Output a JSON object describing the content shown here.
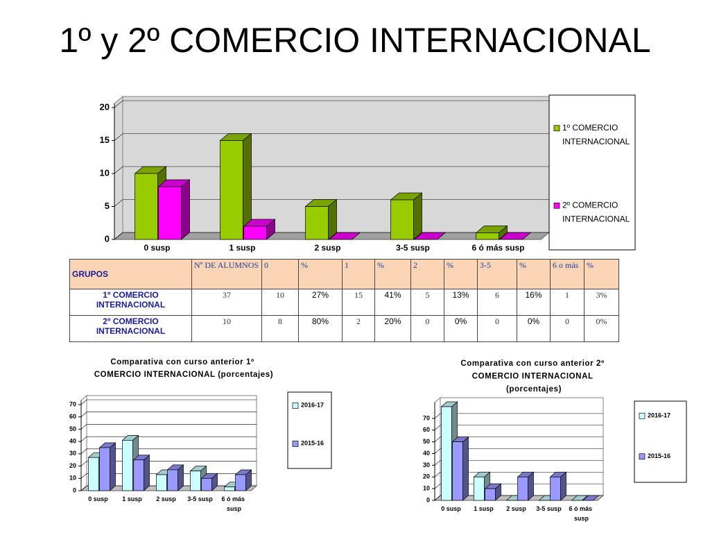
{
  "title": "1º y 2º COMERCIO INTERNACIONAL",
  "chart_data": [
    {
      "type": "bar",
      "categories": [
        "0 susp",
        "1 susp",
        "2 susp",
        "3-5 susp",
        "6 ó más susp"
      ],
      "series": [
        {
          "name": "1º COMERCIO INTERNACIONAL",
          "color": "#99cc00",
          "values": [
            10,
            15,
            5,
            6,
            1
          ]
        },
        {
          "name": "2º COMERCIO INTERNACIONAL",
          "color": "#ff00ff",
          "values": [
            8,
            2,
            0,
            0,
            0
          ]
        }
      ],
      "ylim": [
        0,
        20
      ],
      "yticks": [
        0,
        5,
        10,
        15,
        20
      ],
      "grid": true,
      "legend": "right"
    },
    {
      "type": "bar",
      "title": "Comparativa con curso anterior 1º COMERCIO INTERNACIONAL (porcentajes)",
      "categories": [
        "0 susp",
        "1 susp",
        "2 susp",
        "3-5 susp",
        "6 ó más susp"
      ],
      "series": [
        {
          "name": "2016-17",
          "color": "#ccffff",
          "values": [
            27,
            41,
            13,
            16,
            3
          ]
        },
        {
          "name": "2015-16",
          "color": "#9999ff",
          "values": [
            35,
            25,
            17,
            10,
            13
          ]
        }
      ],
      "ylim": [
        0,
        70
      ],
      "yticks": [
        0,
        10,
        20,
        30,
        40,
        50,
        60,
        70
      ],
      "grid": true,
      "legend": "right"
    },
    {
      "type": "bar",
      "title": "Comparativa con curso anterior 2º COMERCIO INTERNACIONAL (porcentajes)",
      "categories": [
        "0 susp",
        "1 susp",
        "2 susp",
        "3-5 susp",
        "6 ó más susp"
      ],
      "series": [
        {
          "name": "2016-17",
          "color": "#ccffff",
          "values": [
            80,
            20,
            0,
            0,
            0
          ]
        },
        {
          "name": "2015-16",
          "color": "#9999ff",
          "values": [
            50,
            10,
            20,
            20,
            0
          ]
        }
      ],
      "ylim": [
        0,
        80
      ],
      "yticks": [
        0,
        10,
        20,
        30,
        40,
        50,
        60,
        70
      ],
      "grid": true,
      "legend": "right"
    }
  ],
  "table": {
    "header": [
      "GRUPOS",
      "Nº DE ALUMNOS",
      "0",
      "%",
      "1",
      "%",
      "2",
      "%",
      "3-5",
      "%",
      "6 o más",
      "%"
    ],
    "rows": [
      [
        "1º COMERCIO INTERNACIONAL",
        "37",
        "10",
        "27%",
        "15",
        "41%",
        "5",
        "13%",
        "6",
        "16%",
        "1",
        "3%"
      ],
      [
        "2º COMERCIO INTERNACIONAL",
        "10",
        "8",
        "80%",
        "2",
        "20%",
        "0",
        "0%",
        "0",
        "0%",
        "0",
        "0%"
      ]
    ]
  }
}
